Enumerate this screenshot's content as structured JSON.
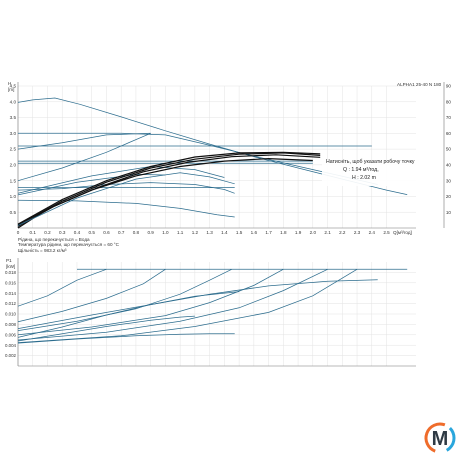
{
  "model_label": "ALPHA1 25-40 N 180",
  "tooltip": {
    "line1": "Натисніть, щоб указати робочу точку",
    "line2": "Q : 1.94 м³/год,",
    "line3": "H : 2.02 m"
  },
  "notes": {
    "line1": "Рідина, що перекачується = Вода",
    "line2": "Температура рідини, що перекачується = 60 °C",
    "line3": "Щільність = 983.2 кг/м³"
  },
  "logo": {
    "letter": "M",
    "colors": {
      "dark": "#2f3a44",
      "orange": "#ef6c2b",
      "blue": "#2aa6dc"
    }
  },
  "colors": {
    "curve": "#2d6d8e",
    "selected": "#111111",
    "grid": "#e3e3e3"
  },
  "chart_data": [
    {
      "type": "line",
      "title": "",
      "y_unit_label_1": "H",
      "y_unit_label_2": "[m]",
      "x_unit_label": "Q[м³/год]",
      "xlim": [
        0,
        2.7
      ],
      "ylim": [
        0,
        4.5
      ],
      "y2lim": [
        0,
        90
      ],
      "x_ticks": [
        0,
        0.1,
        0.2,
        0.3,
        0.4,
        0.5,
        0.6,
        0.7,
        0.8,
        0.9,
        1.0,
        1.1,
        1.2,
        1.3,
        1.4,
        1.5,
        1.6,
        1.7,
        1.8,
        1.9,
        2.0,
        2.1,
        2.2,
        2.3,
        2.4,
        2.5
      ],
      "x_tick_labels": [
        "0",
        "0.1",
        "0.2",
        "0.3",
        "0.4",
        "0.5",
        "0.6",
        "0.7",
        "0.8",
        "0.9",
        "1.0",
        "1.1",
        "1.2",
        "1.3",
        "1.4",
        "1.5",
        "1.6",
        "1.7",
        "1.8",
        "1.9",
        "2.0",
        "2.1",
        "2.2",
        "2.3",
        "2.4",
        "2.5"
      ],
      "y_ticks": [
        0.5,
        1.0,
        1.5,
        2.0,
        2.5,
        3.0,
        3.5,
        4.0,
        4.5
      ],
      "y_tick_labels": [
        "0.5",
        "1.0",
        "1.5",
        "2.0",
        "2.5",
        "3.0",
        "3.5",
        "4.0",
        "4.5"
      ],
      "y2_ticks": [
        10,
        20,
        30,
        40,
        50,
        60,
        70,
        80,
        90
      ],
      "y2_tick_labels": [
        "10",
        "20",
        "30",
        "40",
        "50",
        "60",
        "70",
        "80",
        "90"
      ],
      "grid": true,
      "series": [
        {
          "values": [
            [
              0,
              3.98
            ],
            [
              0.1,
              4.06
            ],
            [
              0.25,
              4.12
            ],
            [
              0.42,
              3.92
            ],
            [
              0.7,
              3.52
            ],
            [
              1.0,
              3.08
            ],
            [
              1.3,
              2.66
            ],
            [
              1.6,
              2.26
            ],
            [
              1.9,
              1.9
            ],
            [
              2.2,
              1.55
            ],
            [
              2.5,
              1.2
            ],
            [
              2.64,
              1.06
            ]
          ]
        },
        {
          "values": [
            [
              0,
              3.0
            ],
            [
              0.7,
              3.0
            ],
            [
              1.0,
              2.95
            ],
            [
              1.3,
              2.62
            ],
            [
              1.6,
              2.28
            ],
            [
              1.9,
              1.96
            ],
            [
              2.2,
              1.64
            ],
            [
              2.44,
              1.38
            ]
          ]
        },
        {
          "values": [
            [
              0,
              2.6
            ],
            [
              2.4,
              2.6
            ]
          ]
        },
        {
          "values": [
            [
              0,
              2.12
            ],
            [
              2.0,
              2.12
            ]
          ]
        },
        {
          "values": [
            [
              0,
              2.05
            ],
            [
              2.0,
              2.05
            ]
          ]
        },
        {
          "values": [
            [
              0,
              1.28
            ],
            [
              1.47,
              1.28
            ]
          ]
        },
        {
          "values": [
            [
              0,
              0.88
            ],
            [
              0.4,
              0.86
            ],
            [
              0.8,
              0.78
            ],
            [
              1.1,
              0.62
            ],
            [
              1.35,
              0.42
            ],
            [
              1.47,
              0.35
            ]
          ]
        },
        {
          "values": [
            [
              0,
              1.2
            ],
            [
              0.3,
              1.25
            ],
            [
              0.6,
              1.38
            ],
            [
              0.9,
              1.44
            ],
            [
              1.2,
              1.38
            ],
            [
              1.4,
              1.22
            ],
            [
              1.47,
              1.1
            ]
          ]
        },
        {
          "values": [
            [
              0,
              1.5
            ],
            [
              0.3,
              1.9
            ],
            [
              0.6,
              2.4
            ],
            [
              0.9,
              3.0
            ]
          ]
        },
        {
          "values": [
            [
              0,
              1.05
            ],
            [
              0.4,
              1.45
            ],
            [
              0.8,
              1.7
            ],
            [
              1.0,
              1.68
            ]
          ]
        },
        {
          "values": [
            [
              0,
              1.1
            ],
            [
              0.5,
              1.65
            ],
            [
              0.9,
              1.95
            ],
            [
              1.2,
              1.85
            ],
            [
              1.4,
              1.6
            ]
          ]
        },
        {
          "values": [
            [
              0,
              2.5
            ],
            [
              0.3,
              2.7
            ],
            [
              0.6,
              2.95
            ],
            [
              0.9,
              3.0
            ]
          ]
        },
        {
          "name": "",
          "values": [
            [
              0,
              0.0
            ],
            [
              0.2,
              0.6
            ],
            [
              0.5,
              1.2
            ],
            [
              0.8,
              1.65
            ],
            [
              1.1,
              1.95
            ],
            [
              1.4,
              2.12
            ],
            [
              1.7,
              2.2
            ],
            [
              2.0,
              2.14
            ]
          ]
        },
        {
          "values": [
            [
              0,
              0.05
            ],
            [
              0.25,
              0.7
            ],
            [
              0.55,
              1.3
            ],
            [
              0.85,
              1.78
            ],
            [
              1.15,
              2.08
            ],
            [
              1.45,
              2.26
            ],
            [
              1.75,
              2.32
            ],
            [
              2.05,
              2.24
            ]
          ]
        },
        {
          "values": [
            [
              0,
              0.1
            ],
            [
              0.3,
              0.85
            ],
            [
              0.6,
              1.45
            ],
            [
              0.9,
              1.9
            ],
            [
              1.2,
              2.18
            ],
            [
              1.5,
              2.34
            ],
            [
              1.8,
              2.38
            ],
            [
              2.05,
              2.3
            ]
          ]
        },
        {
          "values": [
            [
              0,
              0.12
            ],
            [
              0.3,
              0.9
            ],
            [
              0.6,
              1.5
            ],
            [
              0.9,
              1.95
            ],
            [
              1.2,
              2.25
            ],
            [
              1.5,
              2.38
            ],
            [
              1.8,
              2.4
            ],
            [
              2.05,
              2.35
            ]
          ]
        },
        {
          "values": [
            [
              0,
              0.08
            ],
            [
              0.4,
              0.95
            ],
            [
              0.8,
              1.55
            ],
            [
              1.1,
              1.75
            ],
            [
              1.3,
              1.62
            ],
            [
              1.47,
              1.4
            ]
          ]
        }
      ]
    },
    {
      "type": "line",
      "title": "",
      "y_unit_label_1": "P1",
      "y_unit_label_2": "[kW]",
      "xlim": [
        0,
        2.7
      ],
      "ylim": [
        0,
        0.02
      ],
      "y_ticks": [
        0.002,
        0.004,
        0.006,
        0.008,
        0.01,
        0.012,
        0.014,
        0.016,
        0.018
      ],
      "y_tick_labels": [
        "0.002",
        "0.004",
        "0.006",
        "0.008",
        "0.010",
        "0.012",
        "0.014",
        "0.016",
        "0.018"
      ],
      "grid": true,
      "series": [
        {
          "values": [
            [
              0.4,
              0.0186
            ],
            [
              2.64,
              0.0186
            ]
          ]
        },
        {
          "values": [
            [
              0,
              0.0115
            ],
            [
              0.2,
              0.0135
            ],
            [
              0.4,
              0.0165
            ],
            [
              0.6,
              0.0186
            ]
          ]
        },
        {
          "values": [
            [
              0,
              0.0085
            ],
            [
              0.3,
              0.0105
            ],
            [
              0.6,
              0.013
            ],
            [
              0.85,
              0.0158
            ],
            [
              1.0,
              0.0186
            ]
          ]
        },
        {
          "values": [
            [
              0,
              0.0068
            ],
            [
              0.4,
              0.0086
            ],
            [
              0.8,
              0.011
            ],
            [
              1.1,
              0.0138
            ],
            [
              1.3,
              0.0165
            ],
            [
              1.45,
              0.0186
            ]
          ]
        },
        {
          "values": [
            [
              0,
              0.006
            ],
            [
              0.5,
              0.0075
            ],
            [
              1.0,
              0.0097
            ],
            [
              1.3,
              0.0122
            ],
            [
              1.6,
              0.0155
            ],
            [
              1.8,
              0.0186
            ]
          ]
        },
        {
          "values": [
            [
              0,
              0.005
            ],
            [
              0.6,
              0.0065
            ],
            [
              1.1,
              0.0086
            ],
            [
              1.5,
              0.0112
            ],
            [
              1.8,
              0.0145
            ],
            [
              2.1,
              0.0186
            ]
          ]
        },
        {
          "values": [
            [
              0,
              0.0045
            ],
            [
              0.7,
              0.0058
            ],
            [
              1.2,
              0.0076
            ],
            [
              1.7,
              0.0103
            ],
            [
              2.0,
              0.0135
            ],
            [
              2.3,
              0.0186
            ]
          ]
        },
        {
          "values": [
            [
              0,
              0.0072
            ],
            [
              0.5,
              0.0098
            ],
            [
              0.9,
              0.0118
            ],
            [
              1.3,
              0.0138
            ],
            [
              1.7,
              0.0154
            ],
            [
              2.1,
              0.0163
            ],
            [
              2.44,
              0.0166
            ]
          ]
        },
        {
          "values": [
            [
              0,
              0.0055
            ],
            [
              0.3,
              0.0075
            ],
            [
              0.6,
              0.0098
            ],
            [
              0.9,
              0.0118
            ],
            [
              1.2,
              0.0134
            ],
            [
              1.5,
              0.0143
            ]
          ]
        },
        {
          "values": [
            [
              0,
              0.0048
            ],
            [
              0.3,
              0.0062
            ],
            [
              0.6,
              0.0076
            ],
            [
              0.9,
              0.0088
            ],
            [
              1.1,
              0.0094
            ],
            [
              1.2,
              0.0096
            ]
          ]
        },
        {
          "values": [
            [
              0,
              0.0044
            ],
            [
              0.4,
              0.0052
            ],
            [
              0.8,
              0.0058
            ],
            [
              1.1,
              0.0061
            ],
            [
              1.3,
              0.0062
            ],
            [
              1.47,
              0.0062
            ]
          ]
        }
      ]
    }
  ]
}
